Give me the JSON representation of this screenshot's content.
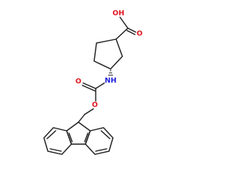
{
  "atoms": [
    {
      "label": "OH"
    },
    {
      "label": "O"
    },
    {
      "label": "NH"
    },
    {
      "label": "O"
    },
    {
      "label": "O"
    }
  ]
}
